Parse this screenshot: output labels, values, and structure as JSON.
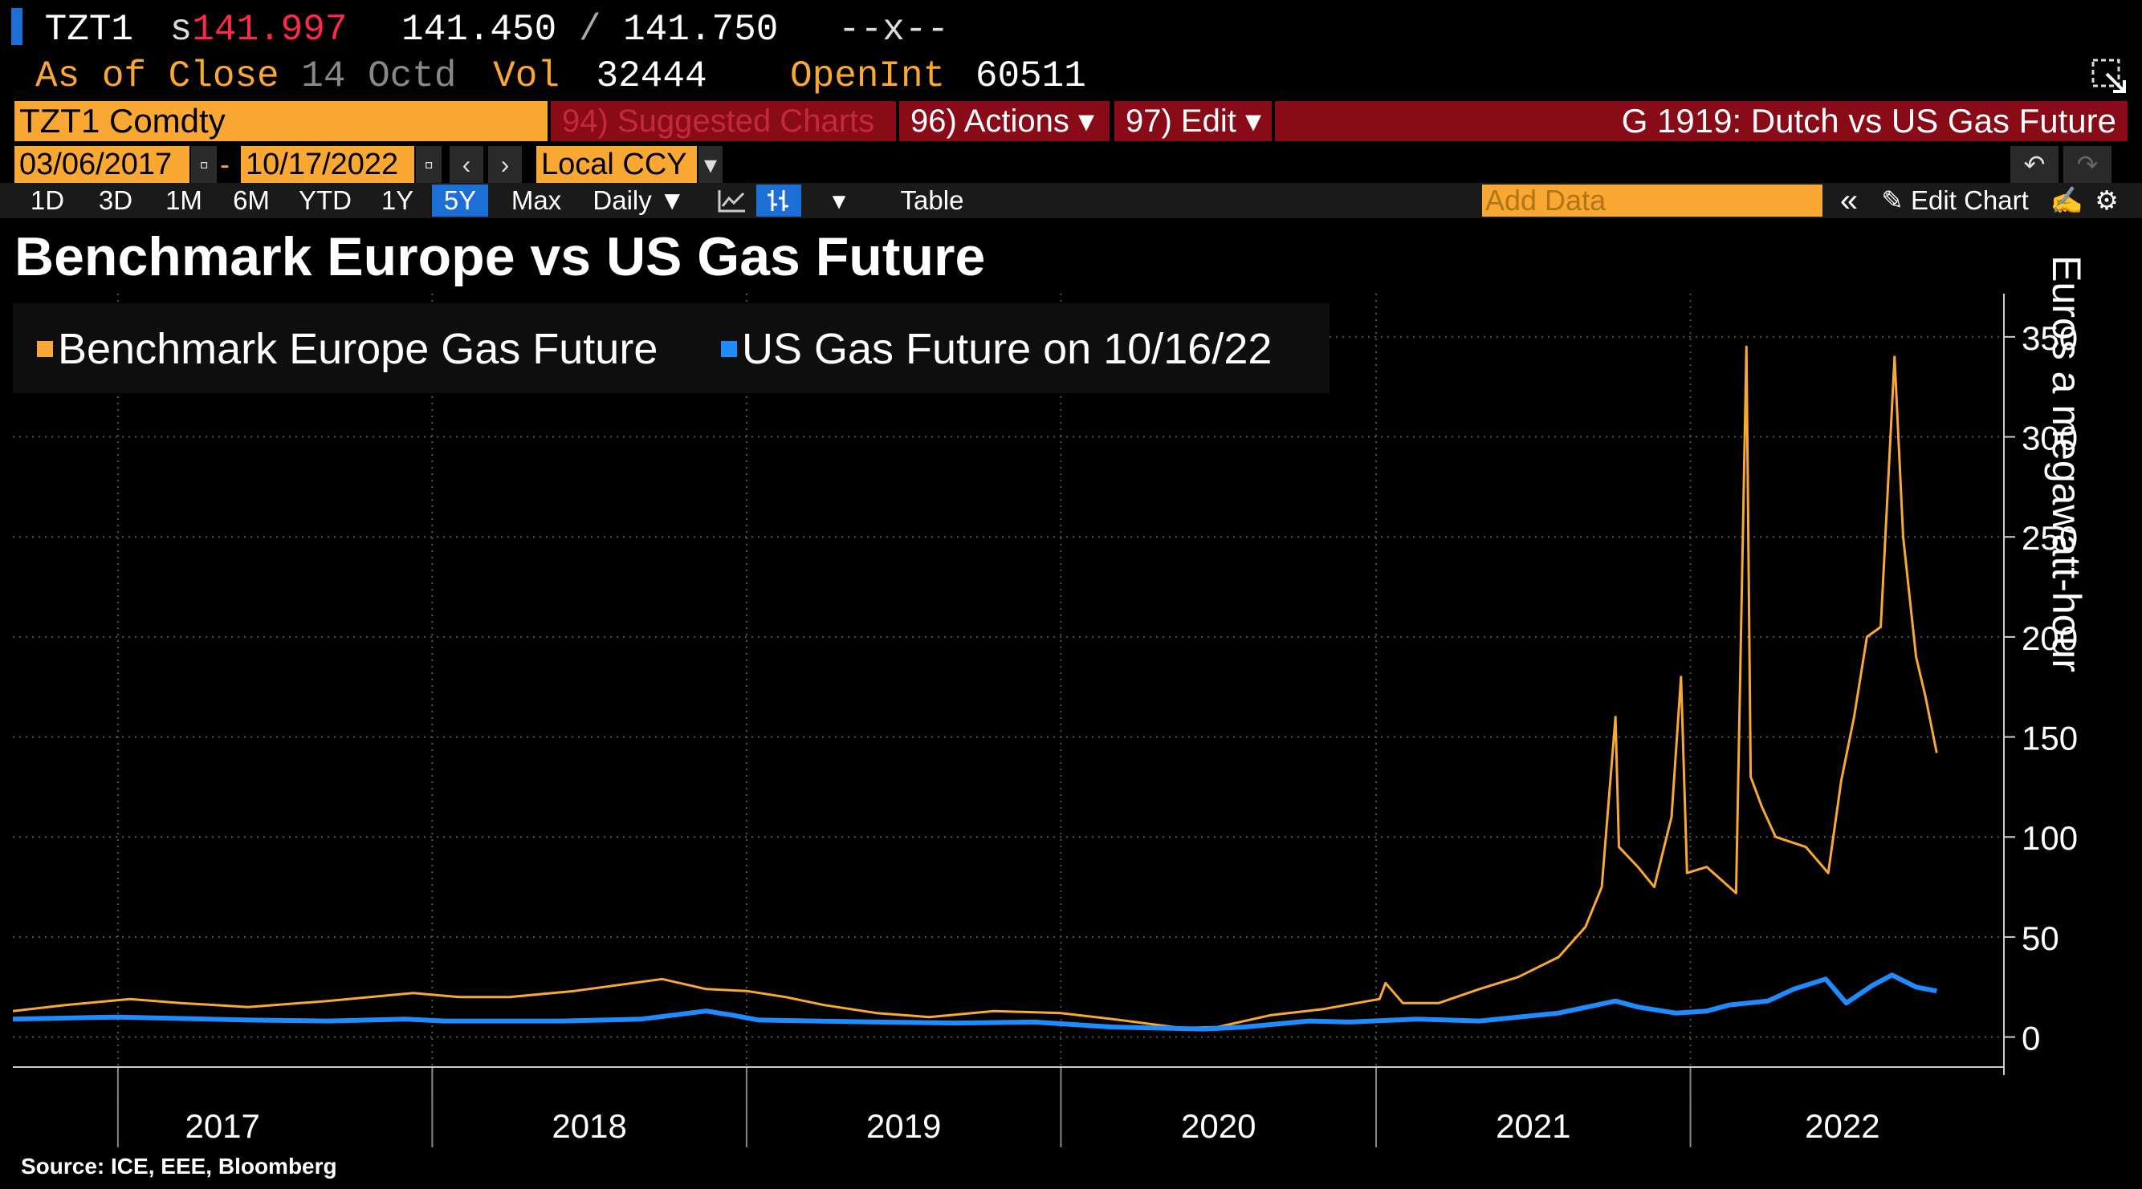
{
  "header": {
    "ticker": "TZT1",
    "last_prefix": "s",
    "last_price": "141.997",
    "bid": "141.450",
    "ask_sep": "/",
    "ask": "141.750",
    "change": "--x--",
    "as_of_label": "As of Close",
    "as_of_date": "14 Octd",
    "vol_label": "Vol",
    "vol_value": "32444",
    "openint_label": "OpenInt",
    "openint_value": "60511"
  },
  "toolbar": {
    "security": "TZT1 Comdty",
    "suggested": "94) Suggested Charts",
    "actions": "96) Actions ▾",
    "edit": "97) Edit ▾",
    "chart_id": "G 1919: Dutch vs US Gas Future",
    "start_date": "03/06/2017",
    "dash": "-",
    "end_date": "10/17/2022",
    "currency": "Local CCY",
    "prev": "‹",
    "next": "›"
  },
  "tabs": [
    "1D",
    "3D",
    "1M",
    "6M",
    "YTD",
    "1Y",
    "5Y",
    "Max"
  ],
  "active_tab": "5Y",
  "tools": {
    "frequency": "Daily ▼",
    "table": "Table",
    "add_data_placeholder": "Add Data",
    "edit_chart": "Edit Chart",
    "collapse": "«",
    "undo": "↶",
    "redo": "↷"
  },
  "source": "Source: ICE, EEE, Bloomberg",
  "colors": {
    "europe": "#f8a833",
    "us": "#1e8cff",
    "amber": "#f8a833",
    "toolbar_red": "#8a0b18",
    "active_tab": "#1d6fd6"
  },
  "chart_data": {
    "type": "line",
    "title": "Benchmark Europe vs US Gas Future",
    "ylabel": "Euros a megawatt-hour",
    "xlabel": "",
    "ylim": [
      -15,
      370
    ],
    "yticks": [
      0,
      50,
      100,
      150,
      200,
      250,
      300,
      350
    ],
    "x_range": [
      "2016-09-01",
      "2022-12-31"
    ],
    "x_tick_labels": [
      "2017",
      "2018",
      "2019",
      "2020",
      "2021",
      "2022"
    ],
    "grid": true,
    "legend_position": "top-left",
    "series": [
      {
        "name": "Benchmark Europe Gas Future",
        "color": "#f8a833",
        "points": [
          [
            "2016-09-01",
            13
          ],
          [
            "2016-11-01",
            16
          ],
          [
            "2017-01-15",
            19
          ],
          [
            "2017-03-15",
            17
          ],
          [
            "2017-06-01",
            15
          ],
          [
            "2017-09-01",
            18
          ],
          [
            "2017-12-10",
            22
          ],
          [
            "2018-02-01",
            20
          ],
          [
            "2018-04-01",
            20
          ],
          [
            "2018-06-15",
            23
          ],
          [
            "2018-09-25",
            29
          ],
          [
            "2018-11-15",
            24
          ],
          [
            "2019-01-01",
            23
          ],
          [
            "2019-02-15",
            20
          ],
          [
            "2019-04-01",
            16
          ],
          [
            "2019-06-01",
            12
          ],
          [
            "2019-08-01",
            10
          ],
          [
            "2019-10-15",
            13
          ],
          [
            "2020-01-01",
            12
          ],
          [
            "2020-03-01",
            9
          ],
          [
            "2020-05-20",
            4.5
          ],
          [
            "2020-07-01",
            5
          ],
          [
            "2020-09-01",
            11
          ],
          [
            "2020-11-01",
            14
          ],
          [
            "2021-01-05",
            19
          ],
          [
            "2021-01-12",
            27
          ],
          [
            "2021-02-01",
            17
          ],
          [
            "2021-03-15",
            17
          ],
          [
            "2021-05-01",
            24
          ],
          [
            "2021-06-15",
            30
          ],
          [
            "2021-08-01",
            40
          ],
          [
            "2021-09-01",
            55
          ],
          [
            "2021-09-20",
            75
          ],
          [
            "2021-10-06",
            160
          ],
          [
            "2021-10-10",
            95
          ],
          [
            "2021-11-01",
            85
          ],
          [
            "2021-11-20",
            75
          ],
          [
            "2021-12-10",
            110
          ],
          [
            "2021-12-21",
            180
          ],
          [
            "2021-12-28",
            82
          ],
          [
            "2022-01-20",
            85
          ],
          [
            "2022-02-23",
            72
          ],
          [
            "2022-03-07",
            345
          ],
          [
            "2022-03-12",
            130
          ],
          [
            "2022-03-25",
            115
          ],
          [
            "2022-04-10",
            100
          ],
          [
            "2022-05-15",
            95
          ],
          [
            "2022-06-10",
            82
          ],
          [
            "2022-06-25",
            128
          ],
          [
            "2022-07-10",
            160
          ],
          [
            "2022-07-25",
            200
          ],
          [
            "2022-08-10",
            205
          ],
          [
            "2022-08-26",
            340
          ],
          [
            "2022-09-05",
            250
          ],
          [
            "2022-09-20",
            190
          ],
          [
            "2022-10-01",
            170
          ],
          [
            "2022-10-14",
            142
          ]
        ]
      },
      {
        "name": "US Gas Future on 10/16/22",
        "color": "#1e8cff",
        "points": [
          [
            "2016-09-01",
            9
          ],
          [
            "2017-01-01",
            10
          ],
          [
            "2017-06-01",
            8.5
          ],
          [
            "2017-09-01",
            8
          ],
          [
            "2017-12-01",
            9
          ],
          [
            "2018-01-15",
            8
          ],
          [
            "2018-06-01",
            8
          ],
          [
            "2018-09-01",
            9
          ],
          [
            "2018-11-15",
            13
          ],
          [
            "2018-12-15",
            11
          ],
          [
            "2019-01-15",
            8.5
          ],
          [
            "2019-06-01",
            7.5
          ],
          [
            "2019-09-01",
            7
          ],
          [
            "2019-12-01",
            7.5
          ],
          [
            "2020-03-01",
            5
          ],
          [
            "2020-06-15",
            4
          ],
          [
            "2020-08-01",
            5
          ],
          [
            "2020-10-15",
            8
          ],
          [
            "2020-12-01",
            7.5
          ],
          [
            "2021-02-17",
            9
          ],
          [
            "2021-05-01",
            8
          ],
          [
            "2021-08-01",
            12
          ],
          [
            "2021-10-06",
            18
          ],
          [
            "2021-11-01",
            15
          ],
          [
            "2021-12-15",
            12
          ],
          [
            "2022-01-20",
            13
          ],
          [
            "2022-02-15",
            16
          ],
          [
            "2022-04-01",
            18
          ],
          [
            "2022-05-01",
            24
          ],
          [
            "2022-06-07",
            29
          ],
          [
            "2022-07-01",
            17
          ],
          [
            "2022-08-01",
            26
          ],
          [
            "2022-08-23",
            31
          ],
          [
            "2022-09-20",
            25
          ],
          [
            "2022-10-14",
            23
          ]
        ]
      }
    ]
  }
}
